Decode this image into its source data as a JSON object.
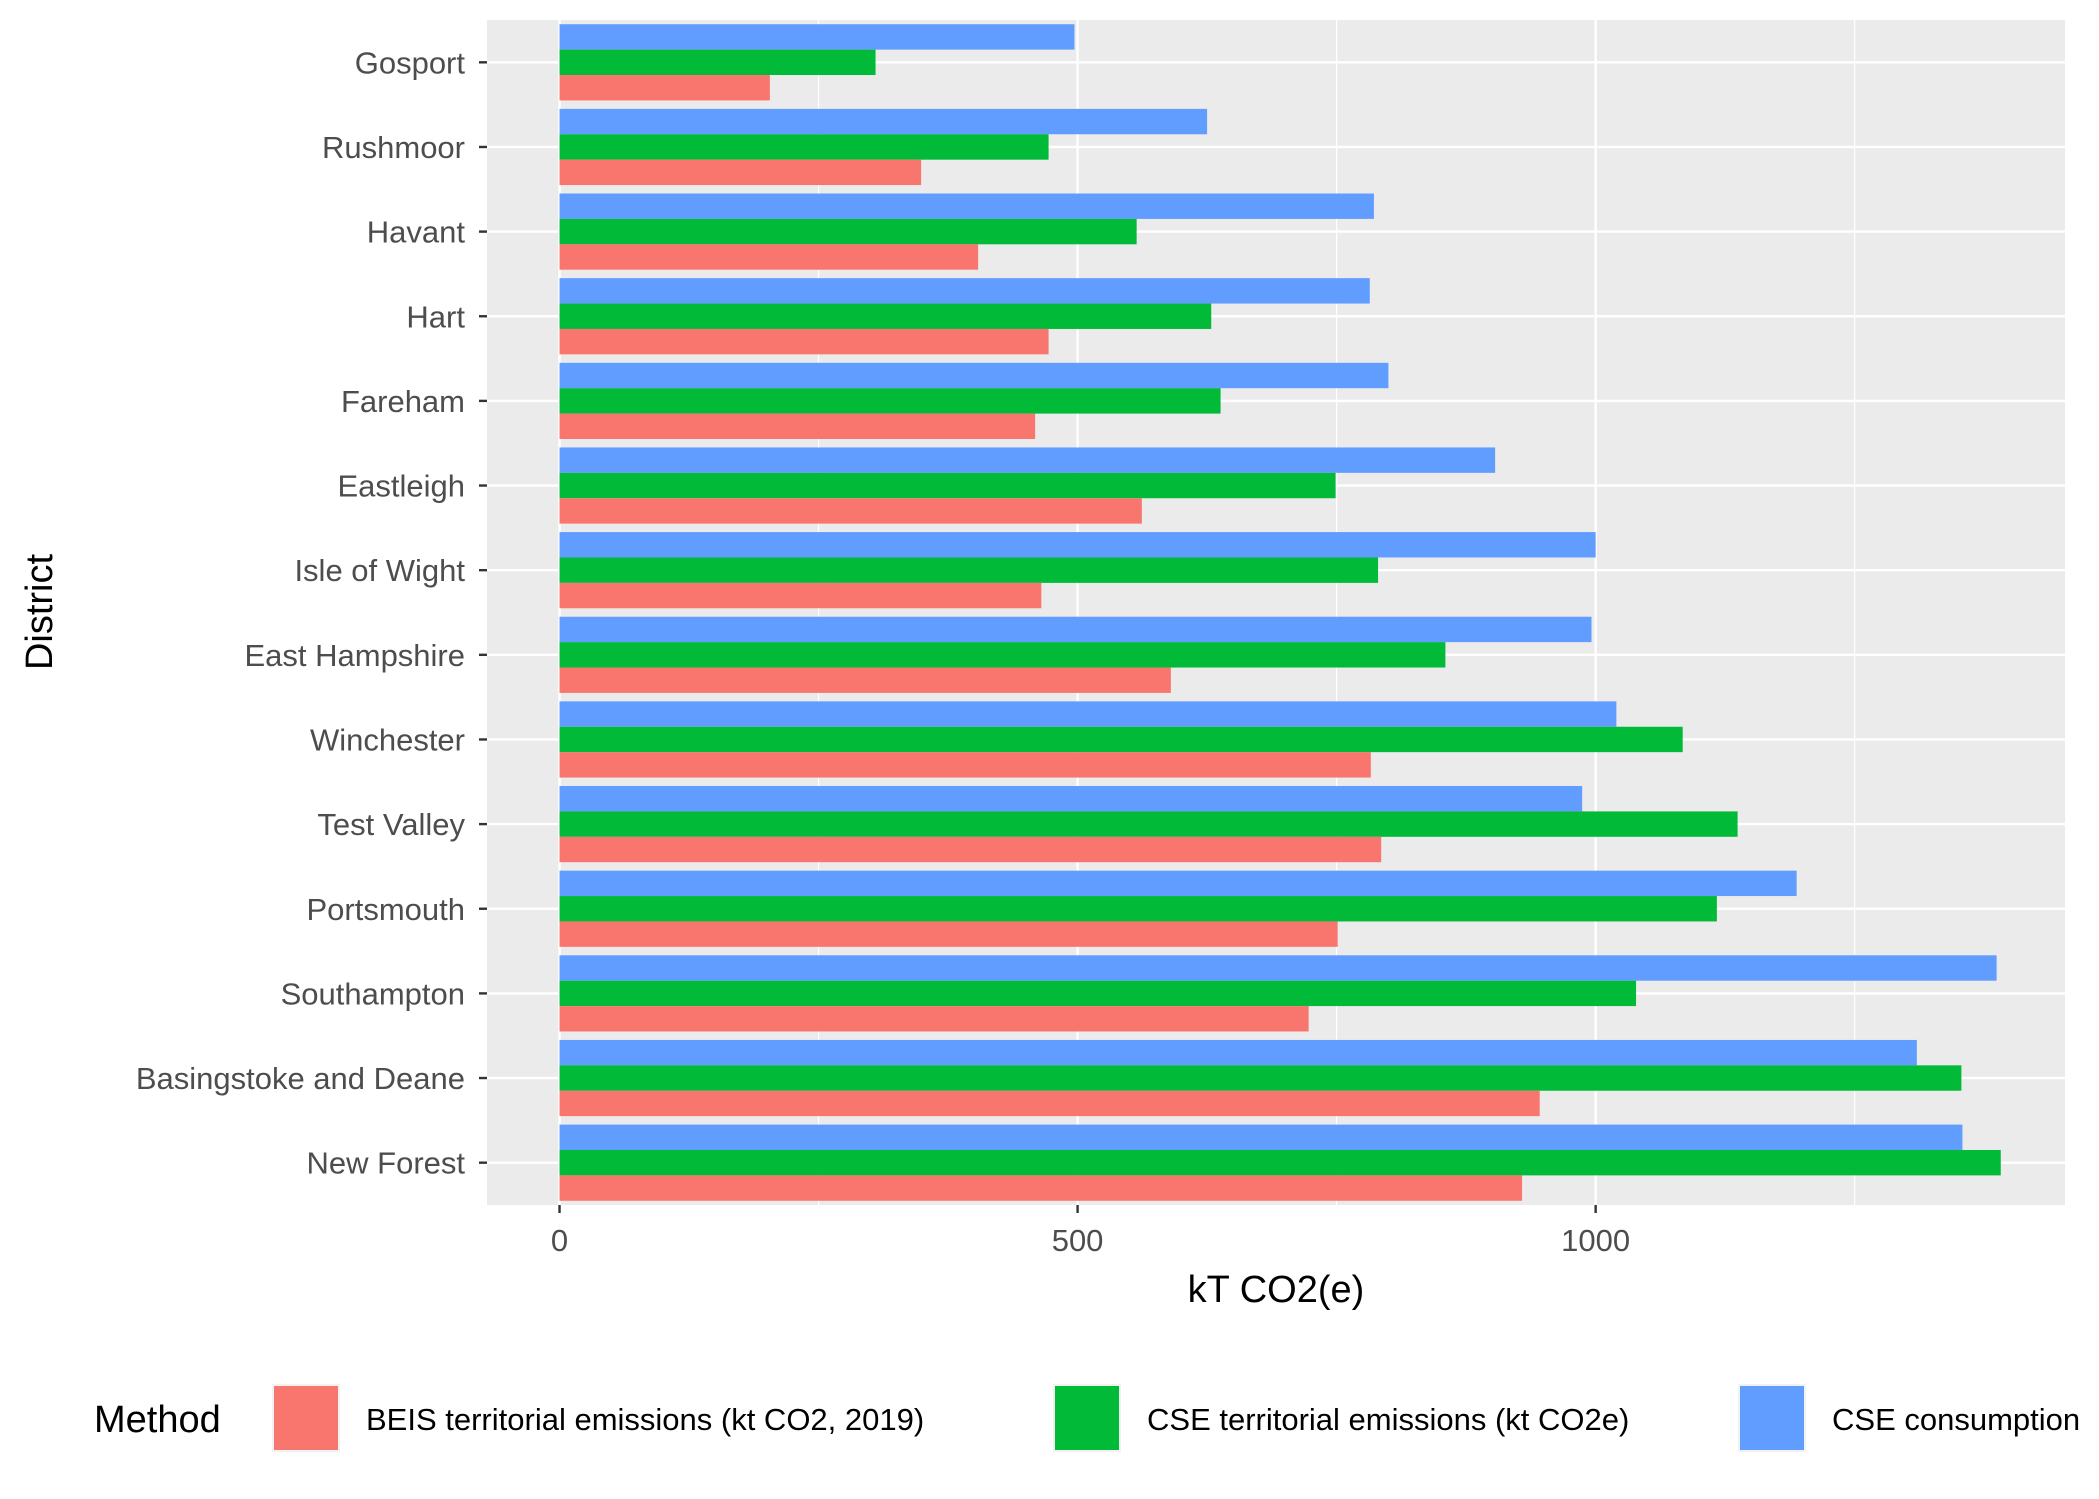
{
  "chart_data": {
    "type": "bar",
    "orientation": "horizontal",
    "title": "",
    "xlabel": "kT CO2(e)",
    "ylabel": "District",
    "xlim": [
      -70,
      1453
    ],
    "x_ticks": [
      0,
      500,
      1000
    ],
    "x_tick_labels": [
      "0",
      "500",
      "1000"
    ],
    "grid": true,
    "legend_placement": "bottom",
    "legend_title": "Method",
    "categories": [
      "Gosport",
      "Rushmoor",
      "Havant",
      "Hart",
      "Fareham",
      "Eastleigh",
      "Isle of Wight",
      "East Hampshire",
      "Winchester",
      "Test Valley",
      "Portsmouth",
      "Southampton",
      "Basingstoke and Deane",
      "New Forest"
    ],
    "series": [
      {
        "name": "CSE consumption",
        "color": "#619CFF",
        "values": [
          497,
          625,
          786,
          782,
          800,
          903,
          1000,
          996,
          1020,
          987,
          1194,
          1387,
          1310,
          1354
        ]
      },
      {
        "name": "CSE territorial emissions (kt CO2e)",
        "color": "#00BA38",
        "values": [
          305,
          472,
          557,
          629,
          638,
          749,
          790,
          855,
          1084,
          1137,
          1117,
          1039,
          1353,
          1391
        ]
      },
      {
        "name": "BEIS territorial emissions (kt CO2, 2019)",
        "color": "#F8766D",
        "values": [
          203,
          349,
          404,
          472,
          459,
          562,
          465,
          590,
          783,
          793,
          751,
          723,
          946,
          929
        ]
      }
    ],
    "legend_order": [
      2,
      1,
      0
    ]
  },
  "colors": {
    "panel_background": "#EBEBEB",
    "grid_major": "#FFFFFF",
    "tick_mark": "#333333"
  }
}
